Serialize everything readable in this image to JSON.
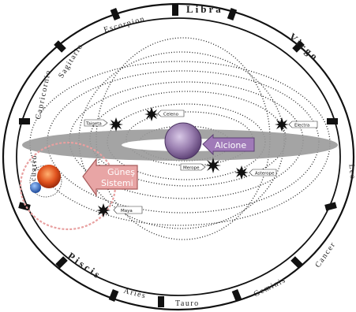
{
  "zodiac": {
    "libra": "Libra",
    "escorpion": "Escorpion",
    "sagitario": "Sagitario",
    "capricornio": "Capricornio",
    "acuario": "Acuario",
    "piscis": "Piscis",
    "aries": "Aries",
    "tauro": "Tauro",
    "geminis": "Geminis",
    "cancer": "Cancer",
    "leo": "Leo",
    "virgo": "Virgo"
  },
  "stars": {
    "taigeta": "Taigeta",
    "celeno": "Celeno",
    "electra": "Electra",
    "merope": "Merope",
    "asterope": "Asterope",
    "maya": "Maya"
  },
  "center": {
    "label": "Alcione"
  },
  "sun_callout": {
    "line1": "Güneş",
    "line2": "Sistemi"
  },
  "colors": {
    "pink_arrow": "#e8a5a5",
    "purple_arrow": "#a07ab8",
    "alcione": "#9a7fb0",
    "galactic_plane": "#9a9a9a",
    "sun": "#d64a1f",
    "earth": "#2e5fb0"
  }
}
